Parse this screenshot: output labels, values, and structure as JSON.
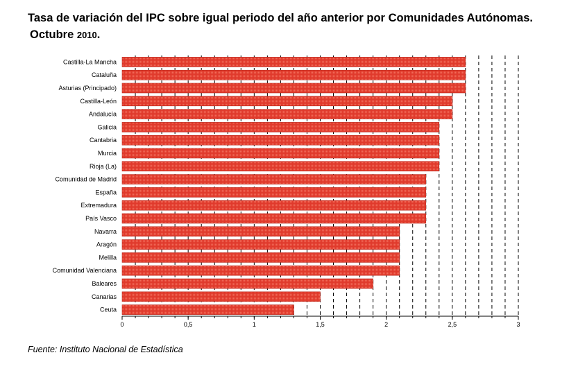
{
  "title": {
    "line1": "Tasa de variación del IPC sobre igual periodo del año anterior por Comunidades Autónomas.",
    "line2_text": "Octubre ",
    "line2_year": "2010",
    "line2_end": "."
  },
  "source": "Fuente: Instituto Nacional de Estadística",
  "colors": {
    "bar": "#e03a2c",
    "bar_edge": "#b82418",
    "grid": "#000000"
  },
  "chart_data": {
    "type": "bar",
    "orientation": "horizontal",
    "categories": [
      "Castilla-La Mancha",
      "Cataluña",
      "Asturias (Principado)",
      "Castilla-León",
      "Andalucía",
      "Galicia",
      "Cantabria",
      "Murcia",
      "Rioja (La)",
      "Comunidad de Madrid",
      "España",
      "Extremadura",
      "País Vasco",
      "Navarra",
      "Aragón",
      "Melilla",
      "Comunidad Valenciana",
      "Baleares",
      "Canarias",
      "Ceuta"
    ],
    "values": [
      2.6,
      2.6,
      2.6,
      2.5,
      2.5,
      2.4,
      2.4,
      2.4,
      2.4,
      2.3,
      2.3,
      2.3,
      2.3,
      2.1,
      2.1,
      2.1,
      2.1,
      1.9,
      1.5,
      1.3
    ],
    "xlim": [
      0,
      3
    ],
    "ticks": [
      "0",
      "0,5",
      "1",
      "1,5",
      "2",
      "2,5",
      "3"
    ],
    "tick_values": [
      0,
      0.5,
      1,
      1.5,
      2,
      2.5,
      3
    ],
    "grid": "dashed vertical lines every 0.1",
    "xlabel": "",
    "ylabel": ""
  }
}
